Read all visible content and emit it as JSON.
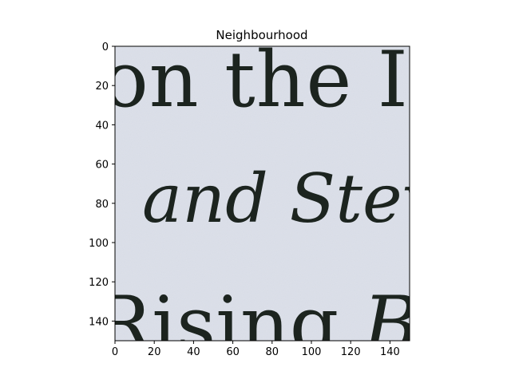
{
  "chart_data": {
    "type": "image",
    "title": "Neighbourhood",
    "xlim": [
      0,
      150
    ],
    "ylim": [
      150,
      0
    ],
    "x_ticks": [
      0,
      20,
      40,
      60,
      80,
      100,
      120,
      140
    ],
    "y_ticks": [
      0,
      20,
      40,
      60,
      80,
      100,
      120,
      140
    ],
    "image_text_lines": [
      {
        "text": "on the In",
        "style": "roman",
        "y": 30
      },
      {
        "text": "and Stev",
        "style": "italic",
        "y": 88
      },
      {
        "text": "Rising Br",
        "style": "mixed",
        "y": 150
      }
    ],
    "colors": {
      "paper": "#dde1ea",
      "ink": "#1c241f"
    }
  }
}
